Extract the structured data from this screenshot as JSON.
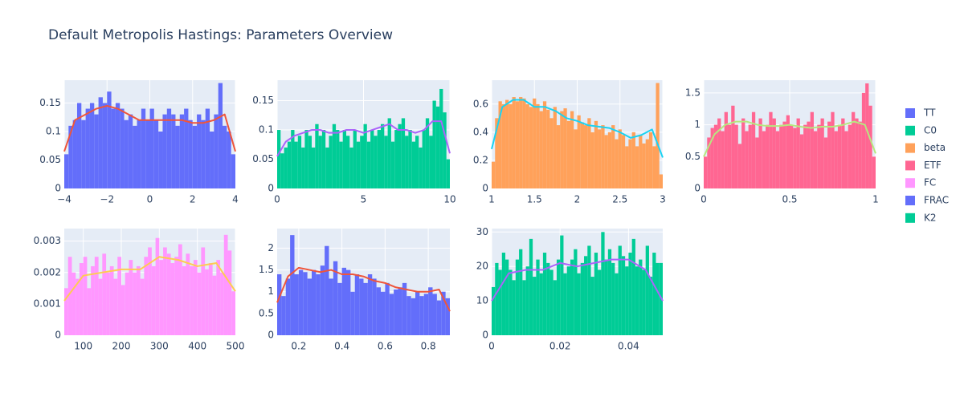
{
  "title": "Default Metropolis Hastings: Parameters Overview",
  "legend": "right",
  "chart_data": [
    {
      "type": "histogram",
      "grid": true,
      "bins": [
        -4,
        -3.8,
        -3.6,
        -3.4,
        -3.2,
        -3,
        -2.8,
        -2.6,
        -2.4,
        -2.2,
        -2,
        -1.8,
        -1.6,
        -1.4,
        -1.2,
        -1,
        -0.8,
        -0.6,
        -0.4,
        -0.2,
        0,
        0.2,
        0.4,
        0.6,
        0.8,
        1,
        1.2,
        1.4,
        1.6,
        1.8,
        2,
        2.2,
        2.4,
        2.6,
        2.8,
        3,
        3.2,
        3.4,
        3.6,
        3.8,
        4
      ],
      "series": [
        {
          "name": "TT",
          "color": "#636efa",
          "values": [
            0.06,
            0.11,
            0.12,
            0.15,
            0.12,
            0.14,
            0.15,
            0.13,
            0.16,
            0.15,
            0.17,
            0.14,
            0.15,
            0.14,
            0.12,
            0.13,
            0.11,
            0.12,
            0.14,
            0.12,
            0.14,
            0.12,
            0.1,
            0.13,
            0.14,
            0.13,
            0.11,
            0.13,
            0.14,
            0.12,
            0.11,
            0.13,
            0.12,
            0.14,
            0.1,
            0.13,
            0.185,
            0.11,
            0.1,
            0.06
          ]
        }
      ],
      "line": {
        "color": "#ef553b",
        "x": [
          -4,
          -3.5,
          -3,
          -2.5,
          -2,
          -1.5,
          -1,
          -0.5,
          0,
          0.5,
          1,
          1.5,
          2,
          2.5,
          3,
          3.5,
          4
        ],
        "values": [
          0.065,
          0.12,
          0.13,
          0.14,
          0.145,
          0.14,
          0.13,
          0.12,
          0.12,
          0.12,
          0.12,
          0.12,
          0.115,
          0.115,
          0.12,
          0.13,
          0.065
        ]
      },
      "xlim": [
        -4,
        4
      ],
      "xticks": [
        {
          "value": -4,
          "label": "−4"
        },
        {
          "value": -2,
          "label": "−2"
        },
        0,
        2,
        4
      ],
      "ylim": [
        0,
        0.19
      ],
      "yticks": [
        0,
        0.05,
        0.1,
        0.15
      ]
    },
    {
      "type": "histogram",
      "grid": true,
      "bins": [
        0,
        0.2,
        0.4,
        0.6,
        0.8,
        1,
        1.2,
        1.4,
        1.6,
        1.8,
        2,
        2.2,
        2.4,
        2.6,
        2.8,
        3,
        3.2,
        3.4,
        3.6,
        3.8,
        4,
        4.2,
        4.4,
        4.6,
        4.8,
        5,
        5.2,
        5.4,
        5.6,
        5.8,
        6,
        6.2,
        6.4,
        6.6,
        6.8,
        7,
        7.2,
        7.4,
        7.6,
        7.8,
        8,
        8.2,
        8.4,
        8.6,
        8.8,
        9,
        9.2,
        9.4,
        9.6,
        9.8,
        10
      ],
      "series": [
        {
          "name": "C0",
          "color": "#00cc96",
          "values": [
            0.1,
            0.06,
            0.07,
            0.08,
            0.1,
            0.08,
            0.09,
            0.07,
            0.1,
            0.09,
            0.07,
            0.11,
            0.09,
            0.1,
            0.07,
            0.09,
            0.11,
            0.1,
            0.08,
            0.1,
            0.09,
            0.07,
            0.1,
            0.08,
            0.09,
            0.11,
            0.08,
            0.1,
            0.09,
            0.1,
            0.11,
            0.09,
            0.12,
            0.08,
            0.1,
            0.11,
            0.12,
            0.09,
            0.1,
            0.08,
            0.09,
            0.07,
            0.1,
            0.12,
            0.09,
            0.15,
            0.14,
            0.17,
            0.13,
            0.05
          ]
        }
      ],
      "line": {
        "color": "#ab63fa",
        "x": [
          0,
          0.5,
          1,
          1.5,
          2,
          2.5,
          3,
          3.5,
          4,
          4.5,
          5,
          5.5,
          6,
          6.5,
          7,
          7.5,
          8,
          8.5,
          9,
          9.5,
          10
        ],
        "values": [
          0.055,
          0.08,
          0.09,
          0.095,
          0.1,
          0.1,
          0.095,
          0.095,
          0.1,
          0.1,
          0.095,
          0.1,
          0.105,
          0.11,
          0.1,
          0.1,
          0.095,
          0.1,
          0.115,
          0.115,
          0.06
        ]
      },
      "xlim": [
        0,
        10
      ],
      "xticks": [
        0,
        5,
        10
      ],
      "ylim": [
        0,
        0.185
      ],
      "yticks": [
        0,
        0.05,
        0.1,
        0.15
      ]
    },
    {
      "type": "histogram",
      "grid": true,
      "bins": [
        1,
        1.04,
        1.08,
        1.12,
        1.16,
        1.2,
        1.24,
        1.28,
        1.32,
        1.36,
        1.4,
        1.44,
        1.48,
        1.52,
        1.56,
        1.6,
        1.64,
        1.68,
        1.72,
        1.76,
        1.8,
        1.84,
        1.88,
        1.92,
        1.96,
        2,
        2.04,
        2.08,
        2.12,
        2.16,
        2.2,
        2.24,
        2.28,
        2.32,
        2.36,
        2.4,
        2.44,
        2.48,
        2.52,
        2.56,
        2.6,
        2.64,
        2.68,
        2.72,
        2.76,
        2.8,
        2.84,
        2.88,
        2.92,
        2.96,
        3
      ],
      "series": [
        {
          "name": "beta",
          "color": "#ffa15a",
          "values": [
            0.19,
            0.5,
            0.62,
            0.6,
            0.63,
            0.6,
            0.65,
            0.62,
            0.65,
            0.64,
            0.6,
            0.58,
            0.64,
            0.6,
            0.55,
            0.62,
            0.56,
            0.5,
            0.58,
            0.45,
            0.55,
            0.57,
            0.48,
            0.55,
            0.42,
            0.52,
            0.47,
            0.45,
            0.5,
            0.4,
            0.48,
            0.42,
            0.45,
            0.38,
            0.4,
            0.45,
            0.35,
            0.42,
            0.38,
            0.3,
            0.35,
            0.4,
            0.3,
            0.38,
            0.32,
            0.35,
            0.4,
            0.3,
            0.75,
            0.1
          ]
        }
      ],
      "line": {
        "color": "#19d3f3",
        "x": [
          1,
          1.125,
          1.25,
          1.375,
          1.5,
          1.625,
          1.75,
          1.875,
          2,
          2.125,
          2.25,
          2.375,
          2.5,
          2.625,
          2.75,
          2.875,
          3
        ],
        "values": [
          0.28,
          0.58,
          0.63,
          0.63,
          0.58,
          0.58,
          0.55,
          0.5,
          0.48,
          0.45,
          0.44,
          0.43,
          0.4,
          0.36,
          0.38,
          0.42,
          0.22
        ]
      },
      "xlim": [
        1,
        3
      ],
      "xticks": [
        1,
        1.5,
        2,
        2.5,
        3
      ],
      "ylim": [
        0,
        0.77
      ],
      "yticks": [
        0,
        0.2,
        0.4,
        0.6
      ]
    },
    {
      "type": "histogram",
      "grid": true,
      "bins": [
        0,
        0.02,
        0.04,
        0.06,
        0.08,
        0.1,
        0.12,
        0.14,
        0.16,
        0.18,
        0.2,
        0.22,
        0.24,
        0.26,
        0.28,
        0.3,
        0.32,
        0.34,
        0.36,
        0.38,
        0.4,
        0.42,
        0.44,
        0.46,
        0.48,
        0.5,
        0.52,
        0.54,
        0.56,
        0.58,
        0.6,
        0.62,
        0.64,
        0.66,
        0.68,
        0.7,
        0.72,
        0.74,
        0.76,
        0.78,
        0.8,
        0.82,
        0.84,
        0.86,
        0.88,
        0.9,
        0.92,
        0.94,
        0.96,
        0.98,
        1
      ],
      "series": [
        {
          "name": "ETF",
          "color": "#ff6692",
          "values": [
            0.5,
            0.8,
            0.95,
            1.0,
            1.1,
            0.9,
            1.2,
            1.0,
            1.3,
            1.0,
            0.7,
            1.1,
            0.9,
            1.0,
            1.2,
            0.8,
            1.1,
            0.9,
            1.0,
            1.2,
            1.1,
            0.9,
            1.0,
            1.05,
            1.15,
            1.0,
            0.95,
            1.1,
            0.85,
            1.0,
            1.05,
            1.2,
            0.9,
            1.0,
            1.1,
            0.8,
            1.05,
            1.2,
            0.9,
            1.0,
            1.1,
            0.9,
            1.0,
            1.2,
            1.1,
            1.05,
            1.5,
            1.65,
            1.3,
            0.5
          ]
        }
      ],
      "line": {
        "color": "#b6e880",
        "x": [
          0,
          0.0625,
          0.125,
          0.1875,
          0.25,
          0.3125,
          0.375,
          0.4375,
          0.5,
          0.5625,
          0.625,
          0.6875,
          0.75,
          0.8125,
          0.875,
          0.9375,
          1
        ],
        "values": [
          0.5,
          0.85,
          1.0,
          1.05,
          1.05,
          1.0,
          0.98,
          0.98,
          1.0,
          0.97,
          0.95,
          0.97,
          0.97,
          1.0,
          1.05,
          1.0,
          0.55
        ]
      },
      "xlim": [
        0,
        1
      ],
      "xticks": [
        0,
        0.5,
        1
      ],
      "ylim": [
        0,
        1.7
      ],
      "yticks": [
        0,
        0.5,
        1,
        1.5
      ]
    },
    {
      "type": "histogram",
      "grid": true,
      "bins": [
        50,
        60,
        70,
        80,
        90,
        100,
        110,
        120,
        130,
        140,
        150,
        160,
        170,
        180,
        190,
        200,
        210,
        220,
        230,
        240,
        250,
        260,
        270,
        280,
        290,
        300,
        310,
        320,
        330,
        340,
        350,
        360,
        370,
        380,
        390,
        400,
        410,
        420,
        430,
        440,
        450,
        460,
        470,
        480,
        490,
        500
      ],
      "series": [
        {
          "name": "FC",
          "color": "#ff97ff",
          "values": [
            0.0015,
            0.0025,
            0.002,
            0.0018,
            0.0023,
            0.0025,
            0.0015,
            0.0022,
            0.0025,
            0.0018,
            0.0026,
            0.002,
            0.0022,
            0.0018,
            0.0025,
            0.0016,
            0.002,
            0.0024,
            0.002,
            0.0022,
            0.0018,
            0.0025,
            0.0028,
            0.0022,
            0.0031,
            0.0024,
            0.0028,
            0.0026,
            0.0023,
            0.0025,
            0.0029,
            0.0022,
            0.0026,
            0.0022,
            0.0024,
            0.002,
            0.0028,
            0.0021,
            0.0023,
            0.0019,
            0.0024,
            0.002,
            0.0032,
            0.0027,
            0.0014
          ]
        }
      ],
      "line": {
        "color": "#fecb52",
        "x": [
          50,
          100,
          150,
          200,
          250,
          300,
          350,
          400,
          450,
          500
        ],
        "values": [
          0.0011,
          0.0019,
          0.002,
          0.0021,
          0.0021,
          0.0025,
          0.0024,
          0.0022,
          0.0023,
          0.0014
        ]
      },
      "xlim": [
        50,
        500
      ],
      "xticks": [
        100,
        200,
        300,
        400,
        500
      ],
      "ylim": [
        0,
        0.0034
      ],
      "yticks": [
        0,
        0.001,
        0.002,
        0.003
      ]
    },
    {
      "type": "histogram",
      "grid": true,
      "bins": [
        0.1,
        0.12,
        0.14,
        0.16,
        0.18,
        0.2,
        0.22,
        0.24,
        0.26,
        0.28,
        0.3,
        0.32,
        0.34,
        0.36,
        0.38,
        0.4,
        0.42,
        0.44,
        0.46,
        0.48,
        0.5,
        0.52,
        0.54,
        0.56,
        0.58,
        0.6,
        0.62,
        0.64,
        0.66,
        0.68,
        0.7,
        0.72,
        0.74,
        0.76,
        0.78,
        0.8,
        0.82,
        0.84,
        0.86,
        0.88,
        0.9
      ],
      "series": [
        {
          "name": "FRAC",
          "color": "#636efa",
          "values": [
            1.4,
            0.9,
            1.3,
            2.3,
            1.4,
            1.5,
            1.45,
            1.3,
            1.5,
            1.4,
            1.6,
            2.05,
            1.3,
            1.7,
            1.2,
            1.55,
            1.5,
            1.0,
            1.4,
            1.3,
            1.2,
            1.4,
            1.3,
            1.1,
            1.0,
            1.2,
            0.95,
            1.05,
            1.1,
            1.2,
            0.9,
            0.85,
            1.0,
            0.9,
            0.95,
            1.1,
            0.95,
            0.8,
            1.0,
            0.85
          ]
        }
      ],
      "line": {
        "color": "#ef553b",
        "x": [
          0.1,
          0.15,
          0.2,
          0.25,
          0.3,
          0.35,
          0.4,
          0.45,
          0.5,
          0.55,
          0.6,
          0.65,
          0.7,
          0.75,
          0.8,
          0.85,
          0.9
        ],
        "values": [
          0.75,
          1.35,
          1.55,
          1.5,
          1.45,
          1.5,
          1.4,
          1.4,
          1.35,
          1.25,
          1.2,
          1.1,
          1.05,
          1.0,
          1.0,
          1.05,
          0.55
        ]
      },
      "xlim": [
        0.1,
        0.9
      ],
      "xticks": [
        0.2,
        0.4,
        0.6,
        0.8
      ],
      "ylim": [
        0,
        2.45
      ],
      "yticks": [
        0,
        0.5,
        1,
        1.5,
        2
      ]
    },
    {
      "type": "histogram",
      "grid": true,
      "bins": [
        0,
        0.001,
        0.002,
        0.003,
        0.004,
        0.005,
        0.006,
        0.007,
        0.008,
        0.009,
        0.01,
        0.011,
        0.012,
        0.013,
        0.014,
        0.015,
        0.016,
        0.017,
        0.018,
        0.019,
        0.02,
        0.021,
        0.022,
        0.023,
        0.024,
        0.025,
        0.026,
        0.027,
        0.028,
        0.029,
        0.03,
        0.031,
        0.032,
        0.033,
        0.034,
        0.035,
        0.036,
        0.037,
        0.038,
        0.039,
        0.04,
        0.041,
        0.042,
        0.043,
        0.044,
        0.045,
        0.046,
        0.047,
        0.048,
        0.049,
        0.05
      ],
      "series": [
        {
          "name": "K2",
          "color": "#00cc96",
          "values": [
            14,
            21,
            19,
            24,
            22,
            19,
            16,
            22,
            25,
            16,
            20,
            28,
            17,
            22,
            18,
            24,
            21,
            19,
            16,
            22,
            29,
            18,
            20,
            22,
            25,
            18,
            21,
            23,
            26,
            17,
            24,
            19,
            30,
            22,
            25,
            21,
            18,
            26,
            23,
            20,
            24,
            28,
            20,
            22,
            19,
            26,
            17,
            24,
            21,
            21
          ]
        }
      ],
      "line": {
        "color": "#ab63fa",
        "x": [
          0,
          0.005,
          0.01,
          0.015,
          0.02,
          0.025,
          0.03,
          0.035,
          0.04,
          0.045,
          0.05
        ],
        "values": [
          10,
          18,
          19,
          19,
          21,
          20,
          21,
          22,
          22,
          19,
          10
        ]
      },
      "xlim": [
        0,
        0.05
      ],
      "xticks": [
        0,
        0.02,
        0.04
      ],
      "ylim": [
        0,
        31
      ],
      "yticks": [
        0,
        10,
        20,
        30
      ]
    }
  ]
}
